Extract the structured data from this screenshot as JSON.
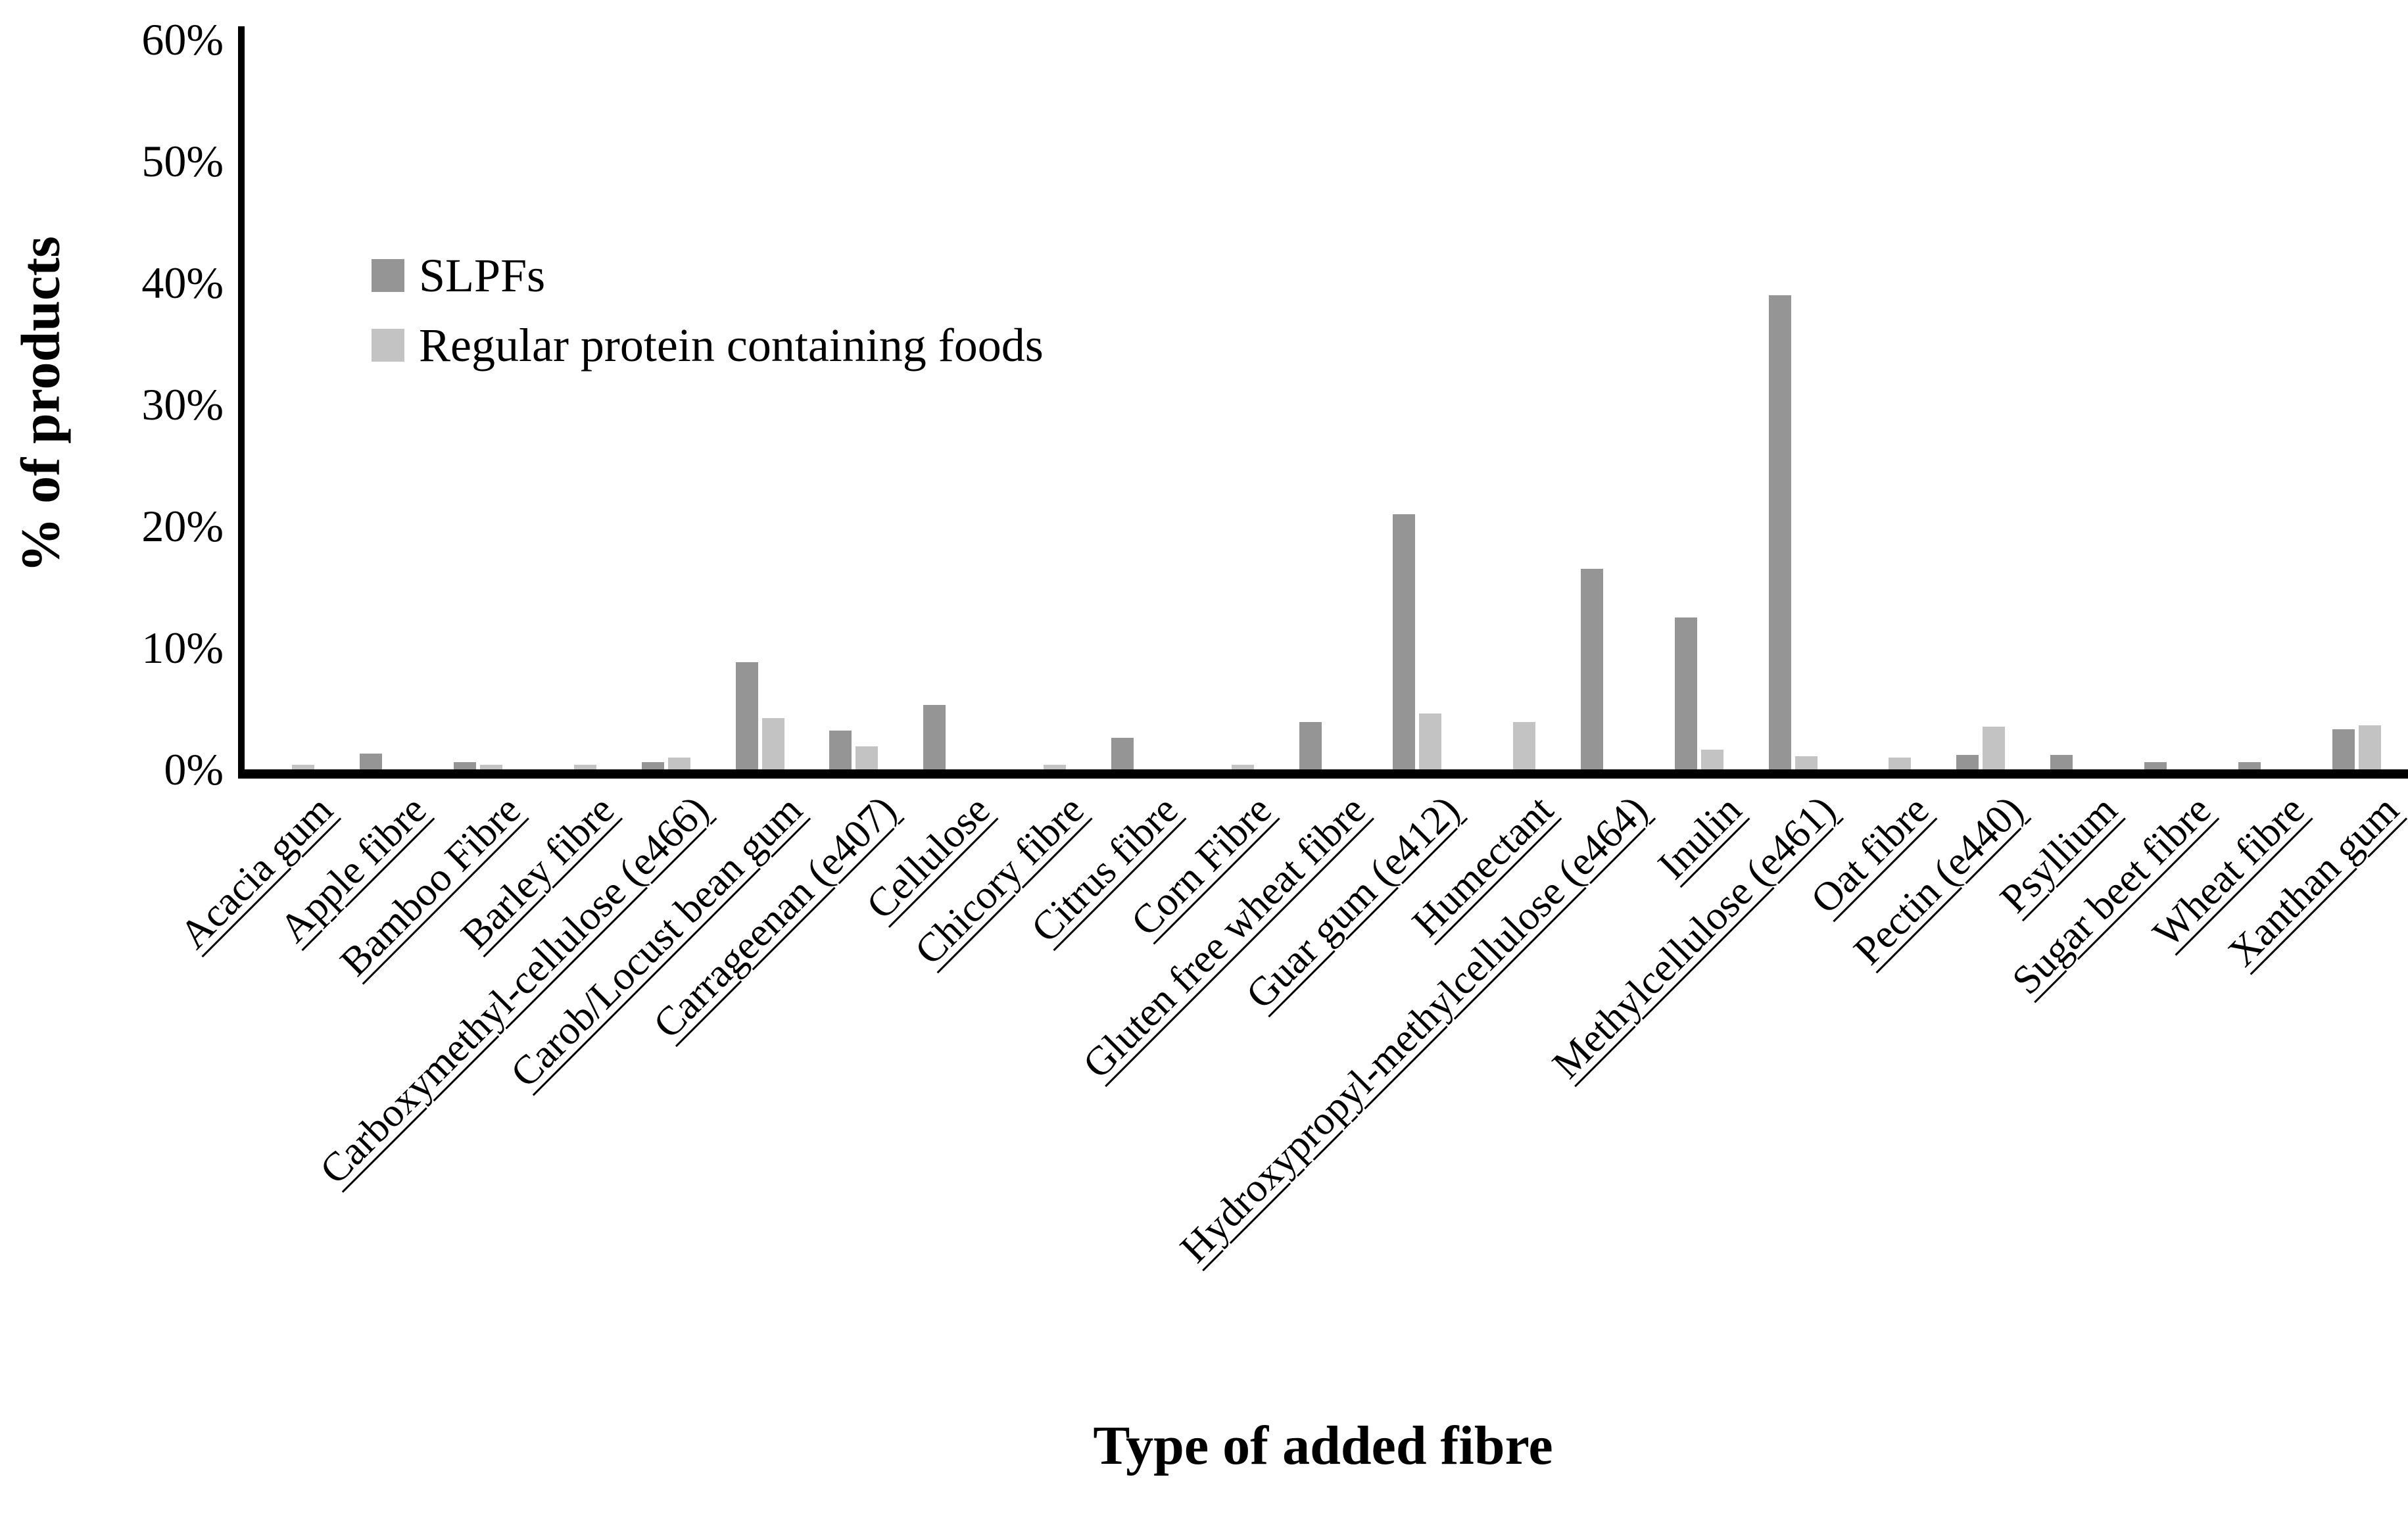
{
  "figure": {
    "background": "#ffffff",
    "text_color": "#000000"
  },
  "legend": {
    "items": [
      {
        "label": "SLPFs",
        "color": "#959595"
      },
      {
        "label": "Regular protein containing foods",
        "color": "#c3c3c3"
      }
    ]
  },
  "chart_data": {
    "type": "bar",
    "title": "",
    "xlabel": "Type of added fibre",
    "ylabel": "% of products",
    "ylim": [
      0,
      60
    ],
    "ytick_step": 10,
    "ytick_suffix": "%",
    "grid": false,
    "legend_position": "upper-left-inside",
    "categories": [
      "Acacia gum",
      "Apple fibre",
      "Bamboo Fibre",
      "Barley fibre",
      "Carboxymethyl-cellulose (e466)",
      "Carob/Locust bean gum",
      "Carrageenan (e407)",
      "Cellulose",
      "Chicory fibre",
      "Citrus fibre",
      "Corn Fibre",
      "Gluten free wheat fibre",
      "Guar gum (e412)",
      "Humectant",
      "Hydroxypropyl-methylcellulose (e464)",
      "Inulin",
      "Methylcellulose (e461)",
      "Oat fibre",
      "Pectin (e440)",
      "Psyllium",
      "Sugar beet fibre",
      "Wheat fibre",
      "Xanthan gum"
    ],
    "series": [
      {
        "name": "SLPFs",
        "color": "#959595",
        "values": [
          0,
          1.3,
          0.6,
          0,
          0.6,
          8.8,
          3.2,
          5.3,
          0,
          2.6,
          0,
          3.9,
          21.0,
          0,
          16.5,
          12.5,
          39.0,
          0,
          1.2,
          1.2,
          0.6,
          0.6,
          3.3
        ]
      },
      {
        "name": "Regular protein containing foods",
        "color": "#c3c3c3",
        "values": [
          0.4,
          0,
          0.4,
          0.4,
          1.0,
          4.2,
          1.9,
          0,
          0.4,
          0,
          0.4,
          0,
          4.6,
          3.9,
          0,
          1.6,
          1.1,
          1.0,
          3.5,
          0,
          0,
          0,
          3.6
        ]
      }
    ]
  }
}
